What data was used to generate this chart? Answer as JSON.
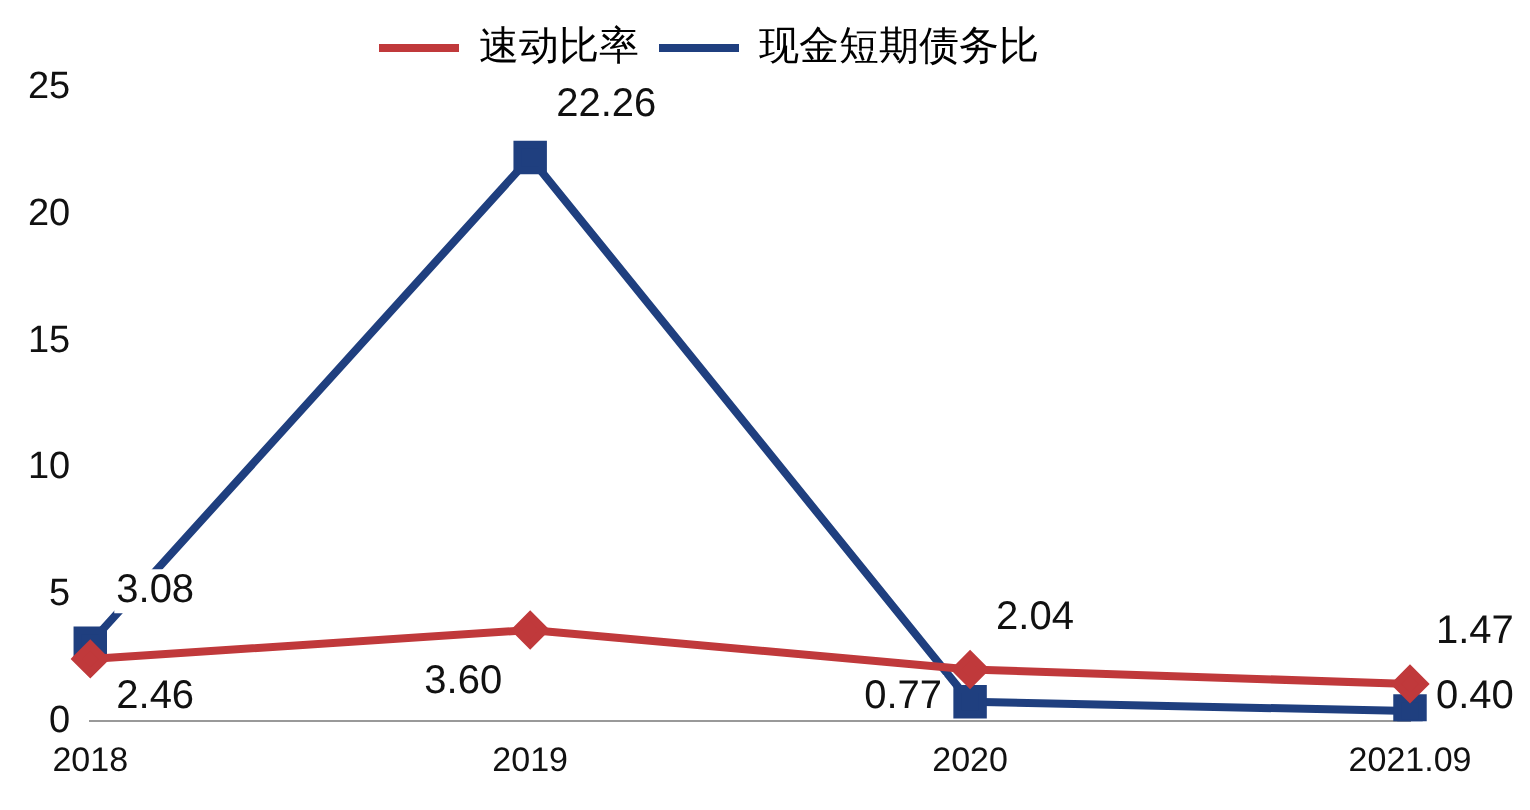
{
  "chart_data": {
    "type": "line",
    "categories": [
      "2018",
      "2019",
      "2020",
      "2021.09"
    ],
    "series": [
      {
        "name": "速动比率",
        "color": "#c0393b",
        "marker": "diamond",
        "values": [
          2.46,
          3.6,
          2.04,
          1.47
        ],
        "value_labels": [
          "2.46",
          "3.60",
          "2.04",
          "1.47"
        ]
      },
      {
        "name": "现金短期债务比",
        "color": "#1f3f7f",
        "marker": "square",
        "values": [
          3.08,
          22.26,
          0.77,
          0.4
        ],
        "value_labels": [
          "3.08",
          "22.26",
          "0.77",
          "0.40"
        ]
      }
    ],
    "ylim": [
      0,
      25
    ],
    "yticks": [
      0,
      5,
      10,
      15,
      20,
      25
    ],
    "grid": false,
    "legend": "top",
    "line_style": "solid"
  }
}
